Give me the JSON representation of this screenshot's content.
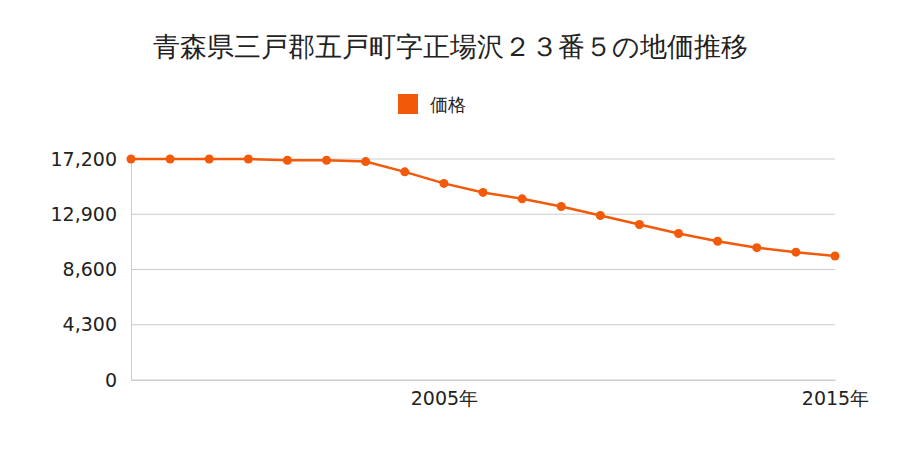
{
  "chart_data": {
    "type": "line",
    "title": "青森県三戸郡五戸町字正場沢２３番５の地価推移",
    "x": [
      1997,
      1998,
      1999,
      2000,
      2001,
      2002,
      2003,
      2004,
      2005,
      2006,
      2007,
      2008,
      2009,
      2010,
      2011,
      2012,
      2013,
      2014,
      2015
    ],
    "series": [
      {
        "name": "価格",
        "color": "#f25a0a",
        "marker": "circle",
        "values": [
          17200,
          17200,
          17200,
          17200,
          17100,
          17100,
          17000,
          16200,
          15300,
          14600,
          14100,
          13500,
          12800,
          12100,
          11400,
          10800,
          10300,
          9950,
          9650
        ]
      }
    ],
    "xlim": [
      1997,
      2015
    ],
    "xticks": [
      {
        "value": 2005,
        "label": "2005年"
      },
      {
        "value": 2015,
        "label": "2015年"
      }
    ],
    "ylim": [
      0,
      17200
    ],
    "yticks": [
      0,
      {
        "value": 4300,
        "label": "4,300"
      },
      {
        "value": 8600,
        "label": "8,600"
      },
      {
        "value": 12900,
        "label": "12,900"
      },
      {
        "value": 17200,
        "label": "17,200"
      }
    ],
    "grid": true,
    "legend": "top"
  }
}
